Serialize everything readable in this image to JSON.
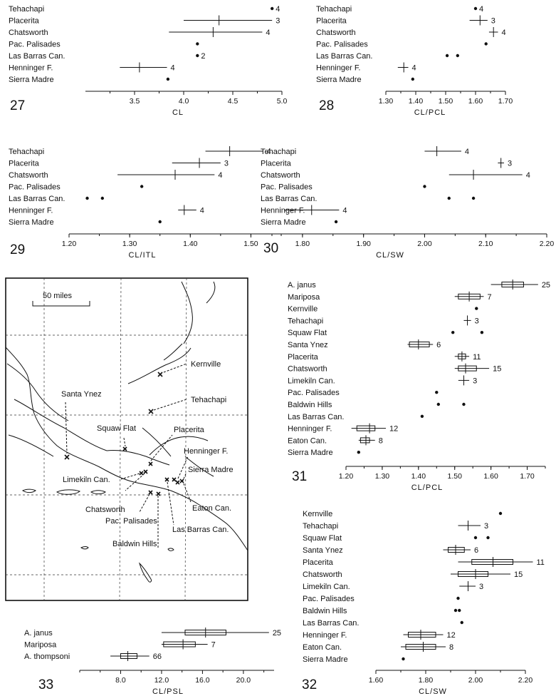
{
  "chart_data": [
    {
      "id": "27",
      "type": "range",
      "figure_number": "27",
      "xlabel": "CL",
      "xlim": [
        3.0,
        5.0
      ],
      "ticks": [
        3.5,
        4.0,
        4.5,
        5.0
      ],
      "tick_labels": [
        "3.5",
        "4.0",
        "4.5",
        "5.0"
      ],
      "rows": [
        {
          "label": "Tehachapi",
          "mean": 4.9,
          "min": 4.9,
          "max": 4.9,
          "n": "4"
        },
        {
          "label": "Placerita",
          "mean": 4.36,
          "min": 4.0,
          "max": 4.9,
          "n": "3"
        },
        {
          "label": "Chatsworth",
          "mean": 4.3,
          "min": 3.85,
          "max": 4.8,
          "n": "4"
        },
        {
          "label": "Pac. Palisades",
          "mean": 4.14,
          "min": 4.14,
          "max": 4.14,
          "n": ""
        },
        {
          "label": "Las Barras Can.",
          "mean": 4.14,
          "min": 4.14,
          "max": 4.14,
          "n": "2"
        },
        {
          "label": "Henninger F.",
          "mean": 3.55,
          "min": 3.35,
          "max": 3.83,
          "n": "4"
        },
        {
          "label": "Sierra Madre",
          "mean": 3.84,
          "min": 3.84,
          "max": 3.84,
          "n": ""
        }
      ]
    },
    {
      "id": "28",
      "type": "range",
      "figure_number": "28",
      "xlabel": "CL/PCL",
      "xlim": [
        1.3,
        1.7
      ],
      "ticks": [
        1.3,
        1.4,
        1.5,
        1.6,
        1.7
      ],
      "tick_labels": [
        "1.30",
        "1.40",
        "1.50",
        "1.60",
        "1.70"
      ],
      "rows": [
        {
          "label": "Tehachapi",
          "mean": 1.6,
          "min": 1.6,
          "max": 1.6,
          "n": "4"
        },
        {
          "label": "Placerita",
          "mean": 1.615,
          "min": 1.58,
          "max": 1.64,
          "n": "3"
        },
        {
          "label": "Chatsworth",
          "mean": 1.66,
          "min": 1.645,
          "max": 1.675,
          "n": "4"
        },
        {
          "label": "Pac. Palisades",
          "mean": 1.635,
          "min": 1.635,
          "max": 1.635,
          "n": ""
        },
        {
          "label": "Las Barras Can.",
          "mean": null,
          "min": null,
          "max": null,
          "n": "",
          "points": [
            1.505,
            1.54
          ]
        },
        {
          "label": "Henninger F.",
          "mean": 1.36,
          "min": 1.34,
          "max": 1.375,
          "n": "4"
        },
        {
          "label": "Sierra Madre",
          "mean": 1.39,
          "min": 1.39,
          "max": 1.39,
          "n": ""
        }
      ]
    },
    {
      "id": "29",
      "type": "range",
      "figure_number": "29",
      "xlabel": "CL/ITL",
      "xlim": [
        1.2,
        1.55
      ],
      "ticks": [
        1.2,
        1.3,
        1.4,
        1.5
      ],
      "tick_labels": [
        "1.20",
        "1.30",
        "1.40",
        "1.50"
      ],
      "rows": [
        {
          "label": "Tehachapi",
          "mean": 1.465,
          "min": 1.425,
          "max": 1.52,
          "n": "4"
        },
        {
          "label": "Placerita",
          "mean": 1.415,
          "min": 1.37,
          "max": 1.45,
          "n": "3"
        },
        {
          "label": "Chatsworth",
          "mean": 1.375,
          "min": 1.28,
          "max": 1.44,
          "n": "4"
        },
        {
          "label": "Pac. Palisades",
          "mean": 1.32,
          "min": 1.32,
          "max": 1.32,
          "n": ""
        },
        {
          "label": "Las Barras Can.",
          "mean": null,
          "min": null,
          "max": null,
          "n": "",
          "points": [
            1.23,
            1.255
          ]
        },
        {
          "label": "Henninger F.",
          "mean": 1.39,
          "min": 1.38,
          "max": 1.41,
          "n": "4"
        },
        {
          "label": "Sierra Madre",
          "mean": 1.35,
          "min": 1.35,
          "max": 1.35,
          "n": ""
        }
      ]
    },
    {
      "id": "30",
      "type": "range",
      "figure_number": "30",
      "xlabel": "CL/SW",
      "xlim": [
        1.75,
        2.2
      ],
      "ticks": [
        1.8,
        1.9,
        2.0,
        2.1,
        2.2
      ],
      "tick_labels": [
        "1.80",
        "1.90",
        "2.00",
        "2.10",
        "2.20"
      ],
      "rows": [
        {
          "label": "Tehachapi",
          "mean": 2.02,
          "min": 2.0,
          "max": 2.06,
          "n": "4"
        },
        {
          "label": "Placerita",
          "mean": 2.125,
          "min": 2.12,
          "max": 2.13,
          "n": "3"
        },
        {
          "label": "Chatsworth",
          "mean": 2.08,
          "min": 2.04,
          "max": 2.16,
          "n": "4"
        },
        {
          "label": "Pac. Palisades",
          "mean": 2.0,
          "min": 2.0,
          "max": 2.0,
          "n": ""
        },
        {
          "label": "Las Barras Can.",
          "mean": null,
          "min": null,
          "max": null,
          "n": "",
          "points": [
            2.04,
            2.08
          ]
        },
        {
          "label": "Henninger F.",
          "mean": 1.815,
          "min": 1.77,
          "max": 1.86,
          "n": "4"
        },
        {
          "label": "Sierra Madre",
          "mean": 1.855,
          "min": 1.855,
          "max": 1.855,
          "n": ""
        }
      ]
    },
    {
      "id": "31",
      "type": "range",
      "figure_number": "31",
      "xlabel": "CL/PCL",
      "xlim": [
        1.2,
        1.75
      ],
      "ticks": [
        1.2,
        1.3,
        1.4,
        1.5,
        1.6,
        1.7
      ],
      "tick_labels": [
        "1.20",
        "1.30",
        "1.40",
        "1.50",
        "1.60",
        "1.70"
      ],
      "rows": [
        {
          "label": "A. janus",
          "mean": 1.66,
          "min": 1.6,
          "max": 1.73,
          "box": [
            1.63,
            1.69
          ],
          "n": "25"
        },
        {
          "label": "Mariposa",
          "mean": 1.54,
          "min": 1.5,
          "max": 1.58,
          "box": [
            1.51,
            1.57
          ],
          "n": "7"
        },
        {
          "label": "Kernville",
          "mean": 1.56,
          "min": 1.56,
          "max": 1.56,
          "n": ""
        },
        {
          "label": "Tehachapi",
          "mean": 1.535,
          "min": 1.525,
          "max": 1.545,
          "n": "3"
        },
        {
          "label": "Squaw Flat",
          "mean": null,
          "min": null,
          "max": null,
          "n": "",
          "points": [
            1.495,
            1.575
          ]
        },
        {
          "label": "Santa Ynez",
          "mean": 1.4,
          "min": 1.37,
          "max": 1.44,
          "box": [
            1.375,
            1.43
          ],
          "n": "6"
        },
        {
          "label": "Placerita",
          "mean": 1.52,
          "min": 1.5,
          "max": 1.54,
          "box": [
            1.51,
            1.53
          ],
          "n": "11"
        },
        {
          "label": "Chatsworth",
          "mean": 1.53,
          "min": 1.5,
          "max": 1.595,
          "box": [
            1.51,
            1.56
          ],
          "n": "15"
        },
        {
          "label": "Limekiln Can.",
          "mean": 1.525,
          "min": 1.51,
          "max": 1.54,
          "n": "3"
        },
        {
          "label": "Pac. Palisades",
          "mean": 1.45,
          "min": 1.45,
          "max": 1.45,
          "n": ""
        },
        {
          "label": "Baldwin Hills",
          "mean": null,
          "min": null,
          "max": null,
          "n": "",
          "points": [
            1.455,
            1.525
          ]
        },
        {
          "label": "Las Barras Can.",
          "mean": 1.41,
          "min": 1.41,
          "max": 1.41,
          "n": ""
        },
        {
          "label": "Henninger F.",
          "mean": 1.265,
          "min": 1.215,
          "max": 1.31,
          "box": [
            1.23,
            1.28
          ],
          "n": "12"
        },
        {
          "label": "Eaton Can.",
          "mean": 1.255,
          "min": 1.235,
          "max": 1.28,
          "box": [
            1.24,
            1.265
          ],
          "n": "8"
        },
        {
          "label": "Sierra Madre",
          "mean": 1.235,
          "min": 1.235,
          "max": 1.235,
          "n": ""
        }
      ]
    },
    {
      "id": "32",
      "type": "range",
      "figure_number": "32",
      "xlabel": "CL/SW",
      "xlim": [
        1.6,
        2.2
      ],
      "ticks": [
        1.6,
        1.8,
        2.0,
        2.2
      ],
      "tick_labels": [
        "1.60",
        "1.80",
        "2.00",
        "2.20"
      ],
      "minor_ticks": [
        1.7,
        1.9,
        2.1
      ],
      "rows": [
        {
          "label": "Kernville",
          "mean": 2.1,
          "min": 2.1,
          "max": 2.1,
          "n": ""
        },
        {
          "label": "Tehachapi",
          "mean": 1.97,
          "min": 1.93,
          "max": 2.02,
          "n": "3"
        },
        {
          "label": "Squaw Flat",
          "mean": null,
          "min": null,
          "max": null,
          "n": "",
          "points": [
            2.0,
            2.05
          ]
        },
        {
          "label": "Santa Ynez",
          "mean": 1.92,
          "min": 1.87,
          "max": 1.98,
          "box": [
            1.89,
            1.955
          ],
          "n": "6"
        },
        {
          "label": "Placerita",
          "mean": 2.07,
          "min": 1.93,
          "max": 2.23,
          "box": [
            1.985,
            2.15
          ],
          "n": "11"
        },
        {
          "label": "Chatsworth",
          "mean": 2.0,
          "min": 1.9,
          "max": 2.14,
          "box": [
            1.93,
            2.05
          ],
          "n": "15"
        },
        {
          "label": "Limekiln Can.",
          "mean": 1.97,
          "min": 1.935,
          "max": 2.0,
          "n": "3"
        },
        {
          "label": "Pac. Palisades",
          "mean": 1.93,
          "min": 1.93,
          "max": 1.93,
          "n": ""
        },
        {
          "label": "Baldwin Hills",
          "mean": null,
          "min": null,
          "max": null,
          "n": "",
          "points": [
            1.92,
            1.935
          ]
        },
        {
          "label": "Las Barras Can.",
          "mean": 1.945,
          "min": 1.945,
          "max": 1.945,
          "n": ""
        },
        {
          "label": "Henninger F.",
          "mean": 1.78,
          "min": 1.71,
          "max": 1.87,
          "box": [
            1.73,
            1.84
          ],
          "n": "12"
        },
        {
          "label": "Eaton Can.",
          "mean": 1.79,
          "min": 1.7,
          "max": 1.88,
          "box": [
            1.72,
            1.84
          ],
          "n": "8"
        },
        {
          "label": "Sierra Madre",
          "mean": 1.71,
          "min": 1.71,
          "max": 1.71,
          "n": ""
        }
      ]
    },
    {
      "id": "33",
      "type": "range",
      "figure_number": "33",
      "xlabel": "CL/PSL",
      "xlim": [
        4.0,
        23.0
      ],
      "ticks": [
        8.0,
        12.0,
        16.0,
        20.0
      ],
      "tick_labels": [
        "8.0",
        "12.0",
        "16.0",
        "20.0"
      ],
      "minor_ticks": [
        4.0,
        6.0,
        10.0,
        14.0,
        18.0,
        22.0
      ],
      "rows": [
        {
          "label": "A. janus",
          "mean": 16.3,
          "min": 12.0,
          "max": 22.5,
          "box": [
            14.3,
            18.3
          ],
          "n": "25"
        },
        {
          "label": "Mariposa",
          "mean": 14.1,
          "min": 12.0,
          "max": 16.5,
          "box": [
            12.2,
            15.3
          ],
          "n": "7"
        },
        {
          "label": "A. thompsoni",
          "mean": 8.7,
          "min": 7.0,
          "max": 10.8,
          "box": [
            8.0,
            9.6
          ],
          "n": "66"
        }
      ]
    }
  ],
  "map": {
    "scale_label": "50 miles",
    "localities": [
      "Kernville",
      "Tehachapi",
      "Santa Ynez",
      "Squaw Flat",
      "Placerita",
      "Henninger F.",
      "Sierra Madre",
      "Limekiln Can.",
      "Eaton Can.",
      "Chatsworth",
      "Pac. Palisades",
      "Las Barras Can.",
      "Baldwin Hills"
    ]
  }
}
